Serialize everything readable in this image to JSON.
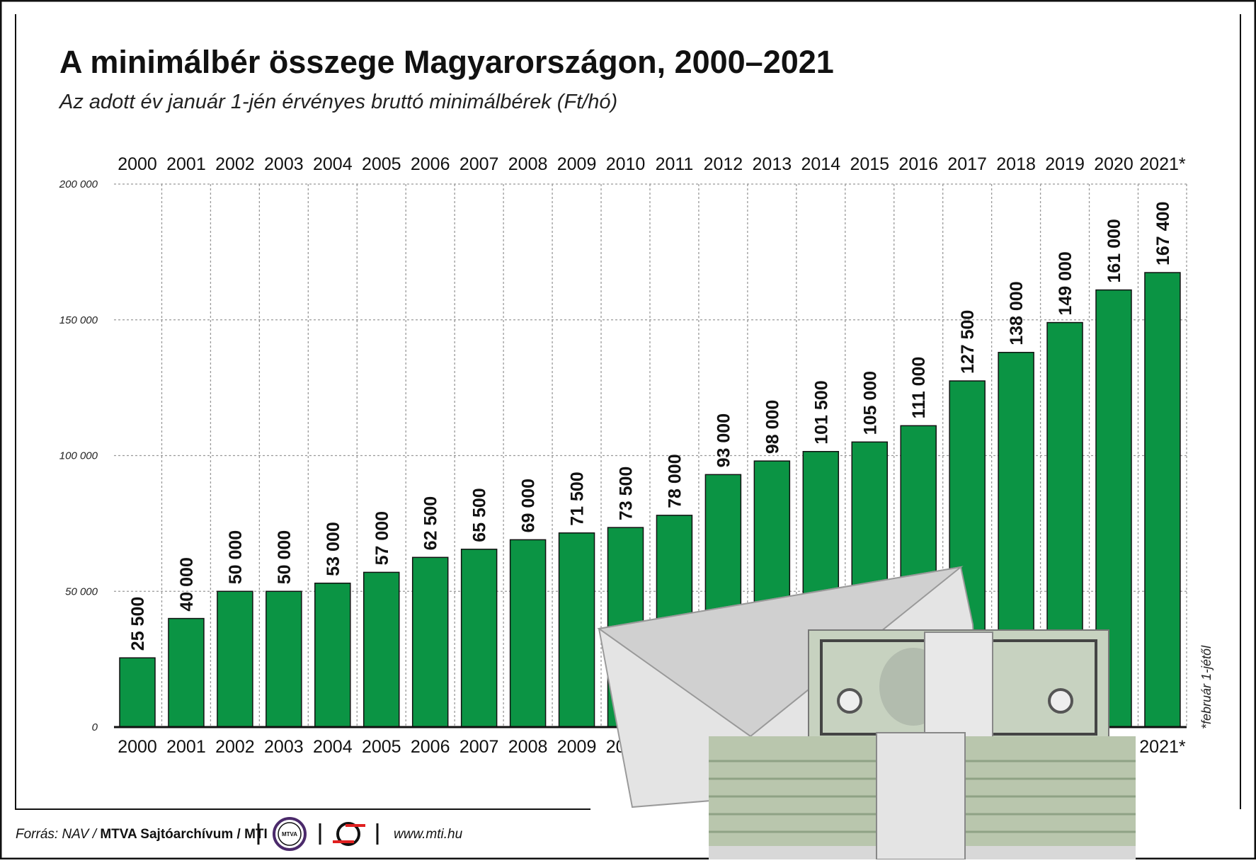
{
  "chart_data": {
    "type": "bar",
    "title": "A minimálbér összege Magyarországon, 2000–2021",
    "subtitle": "Az adott év január 1-jén érvényes bruttó minimálbérek (Ft/hó)",
    "categories": [
      "2000",
      "2001",
      "2002",
      "2003",
      "2004",
      "2005",
      "2006",
      "2007",
      "2008",
      "2009",
      "2010",
      "2011",
      "2012",
      "2013",
      "2014",
      "2015",
      "2016",
      "2017",
      "2018",
      "2019",
      "2020",
      "2021*"
    ],
    "values": [
      25500,
      40000,
      50000,
      50000,
      53000,
      57000,
      62500,
      65500,
      69000,
      71500,
      73500,
      78000,
      93000,
      98000,
      101500,
      105000,
      111000,
      127500,
      138000,
      149000,
      161000,
      167400
    ],
    "value_labels": [
      "25 500",
      "40 000",
      "50 000",
      "50 000",
      "53 000",
      "57 000",
      "62 500",
      "65 500",
      "69 000",
      "71 500",
      "73 500",
      "78 000",
      "93 000",
      "98 000",
      "101 500",
      "105 000",
      "111 000",
      "127 500",
      "138 000",
      "149 000",
      "161 000",
      "167 400"
    ],
    "ylim": [
      0,
      200000
    ],
    "yticks": [
      0,
      50000,
      100000,
      150000,
      200000
    ],
    "ytick_labels": [
      "0",
      "50 000",
      "100 000",
      "150 000",
      "200 000"
    ],
    "grid": true,
    "bar_color": "#0b9444",
    "footnote": "*február 1-jétől"
  },
  "footer": {
    "source_prefix": "Forrás: NAV / ",
    "source_bold": "MTVA Sajtóarchívum / MTI",
    "logo_text": "MTVA",
    "url": "www.mti.hu"
  }
}
